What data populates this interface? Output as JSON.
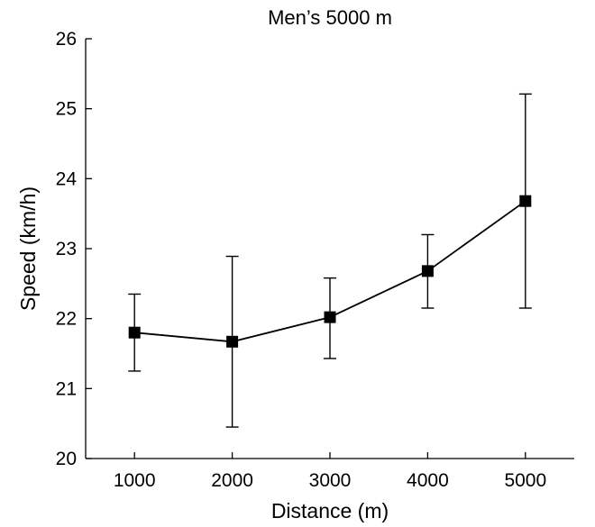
{
  "chart_data": {
    "type": "line",
    "title": "Men’s 5000 m",
    "xlabel": "Distance (m)",
    "ylabel": "Speed (km/h)",
    "xlim": [
      500,
      5500
    ],
    "ylim": [
      20,
      26
    ],
    "xticks": [
      1000,
      2000,
      3000,
      4000,
      5000
    ],
    "yticks": [
      20,
      21,
      22,
      23,
      24,
      25,
      26
    ],
    "grid": false,
    "series": [
      {
        "name": "Men’s 5000 m",
        "marker": "square",
        "color": "#000000",
        "x": [
          1000,
          2000,
          3000,
          4000,
          5000
        ],
        "y": [
          21.8,
          21.67,
          22.02,
          22.68,
          23.68
        ],
        "err_low": [
          21.25,
          20.45,
          21.43,
          22.15,
          22.15
        ],
        "err_high": [
          22.35,
          22.89,
          22.58,
          23.2,
          25.21
        ]
      }
    ]
  }
}
